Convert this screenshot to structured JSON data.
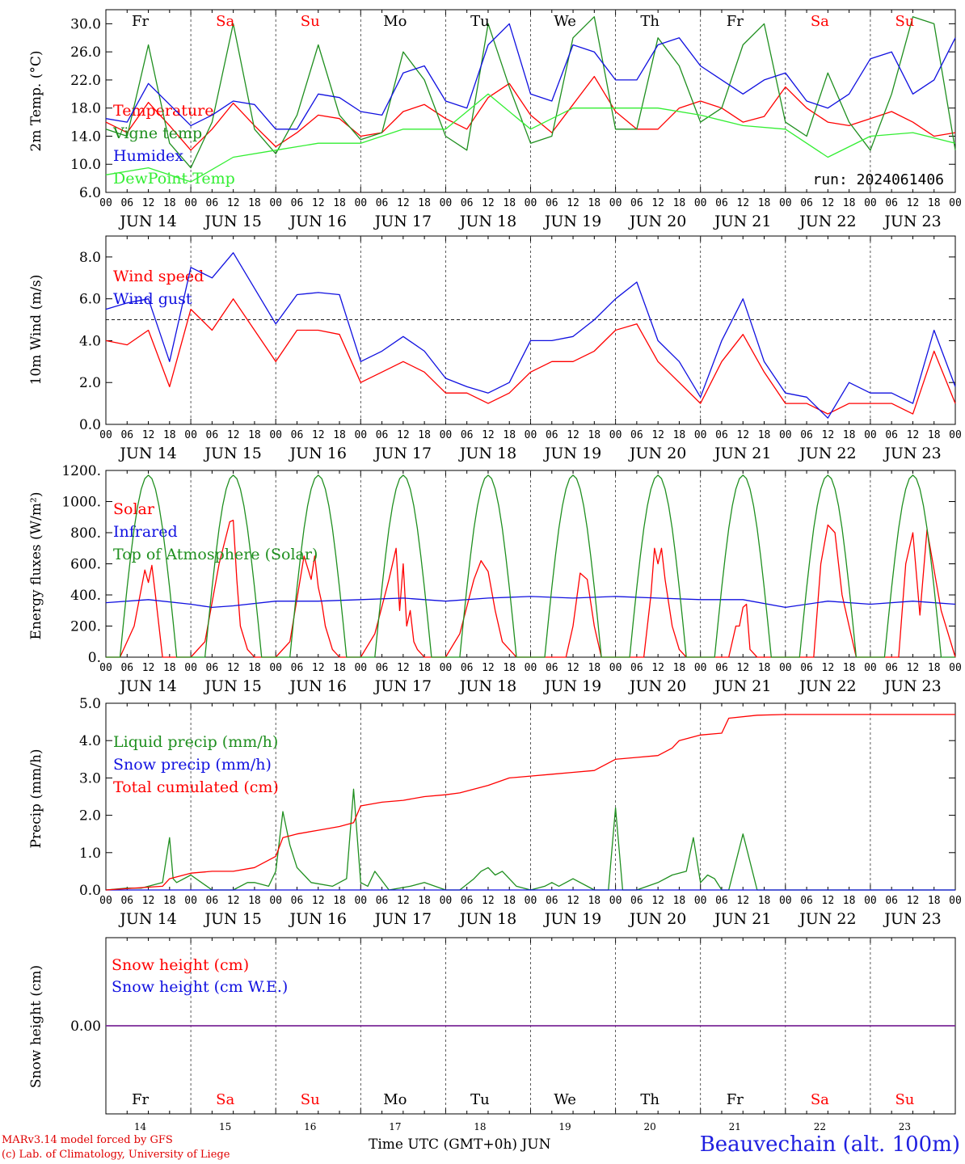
{
  "chart_data": [
    {
      "type": "line",
      "ylabel": "2m Temp. (°C)",
      "yticks": [
        "6.0",
        "10.0",
        "14.0",
        "18.0",
        "22.0",
        "26.0",
        "30.0"
      ],
      "ylim": [
        6,
        32
      ],
      "run_label": "run: 2024061406",
      "series": [
        {
          "name": "Temperature",
          "color": "#ff0000",
          "x": [
            0,
            6,
            12,
            18,
            24,
            30,
            36,
            42,
            48,
            54,
            60,
            66,
            72,
            78,
            84,
            90,
            96,
            102,
            108,
            114,
            120,
            126,
            132,
            138,
            144,
            150,
            156,
            162,
            168,
            174,
            180,
            186,
            192,
            198,
            204,
            210,
            216,
            222,
            228,
            234,
            240
          ],
          "y": [
            16,
            14.5,
            18.8,
            15.5,
            12,
            15,
            18.7,
            15.5,
            12.5,
            14.5,
            17,
            16.5,
            14,
            14.5,
            17.5,
            18.5,
            16.5,
            15,
            19.5,
            21.5,
            17,
            14.5,
            18.5,
            22.5,
            17.5,
            15,
            15,
            18,
            19,
            18,
            16,
            16.8,
            21,
            18,
            16,
            15.5,
            16.5,
            17.5,
            16,
            14,
            14.5
          ]
        },
        {
          "name": "Vigne temp",
          "color": "#1f8f1f",
          "x": [
            0,
            6,
            12,
            18,
            24,
            30,
            36,
            42,
            48,
            54,
            60,
            66,
            72,
            78,
            84,
            90,
            96,
            102,
            108,
            114,
            120,
            126,
            132,
            138,
            144,
            150,
            156,
            162,
            168,
            174,
            180,
            186,
            192,
            198,
            204,
            210,
            216,
            222,
            228,
            234,
            240
          ],
          "y": [
            15,
            14,
            27,
            13,
            9.5,
            16,
            30,
            15,
            11.5,
            17,
            27,
            17,
            13.5,
            14.5,
            26,
            22,
            14,
            12,
            30,
            21,
            13,
            14,
            28,
            31,
            15,
            15,
            28,
            24,
            16,
            18,
            27,
            30,
            16,
            14,
            23,
            16,
            12,
            20,
            31,
            30,
            12
          ]
        },
        {
          "name": "Humidex",
          "color": "#1010e0",
          "x": [
            0,
            6,
            12,
            18,
            24,
            30,
            36,
            42,
            48,
            54,
            60,
            66,
            72,
            78,
            84,
            90,
            96,
            102,
            108,
            114,
            120,
            126,
            132,
            138,
            144,
            150,
            156,
            162,
            168,
            174,
            180,
            186,
            192,
            198,
            204,
            210,
            216,
            222,
            228,
            234,
            240
          ],
          "y": [
            16.5,
            16,
            21.5,
            18.5,
            15.5,
            17,
            19,
            18.5,
            15,
            15,
            20,
            19.5,
            17.5,
            17,
            23,
            24,
            19,
            18,
            27,
            30,
            20,
            19,
            27,
            26,
            22,
            22,
            27,
            28,
            24,
            22,
            20,
            22,
            23,
            19,
            18,
            20,
            25,
            26,
            20,
            22,
            28
          ]
        },
        {
          "name": "DewPoint Temp",
          "color": "#33ee33",
          "x": [
            0,
            12,
            24,
            36,
            48,
            60,
            72,
            84,
            96,
            108,
            120,
            132,
            144,
            156,
            168,
            180,
            192,
            204,
            216,
            228,
            240
          ],
          "y": [
            8.5,
            9.5,
            7.5,
            11,
            12,
            13,
            13,
            15,
            15,
            20,
            15,
            18,
            18,
            18,
            17,
            15.5,
            15,
            11,
            14,
            14.5,
            13
          ]
        }
      ]
    },
    {
      "type": "line",
      "ylabel": "10m Wind (m/s)",
      "yticks": [
        "0.0",
        "2.0",
        "4.0",
        "6.0",
        "8.0"
      ],
      "ylim": [
        0,
        9
      ],
      "reference_line": 5,
      "series": [
        {
          "name": "Wind speed",
          "color": "#ff0000",
          "x": [
            0,
            6,
            12,
            18,
            24,
            30,
            36,
            42,
            48,
            54,
            60,
            66,
            72,
            78,
            84,
            90,
            96,
            102,
            108,
            114,
            120,
            126,
            132,
            138,
            144,
            150,
            156,
            162,
            168,
            174,
            180,
            186,
            192,
            198,
            204,
            210,
            216,
            222,
            228,
            234,
            240
          ],
          "y": [
            4,
            3.8,
            4.5,
            1.8,
            5.5,
            4.5,
            6,
            4.5,
            3,
            4.5,
            4.5,
            4.3,
            2,
            2.5,
            3,
            2.5,
            1.5,
            1.5,
            1,
            1.5,
            2.5,
            3,
            3,
            3.5,
            4.5,
            4.8,
            3,
            2,
            1,
            3,
            4.3,
            2.5,
            1,
            1,
            0.5,
            1,
            1,
            1,
            0.5,
            3.5,
            1
          ]
        },
        {
          "name": "Wind gust",
          "color": "#1010e0",
          "x": [
            0,
            6,
            12,
            18,
            24,
            30,
            36,
            42,
            48,
            54,
            60,
            66,
            72,
            78,
            84,
            90,
            96,
            102,
            108,
            114,
            120,
            126,
            132,
            138,
            144,
            150,
            156,
            162,
            168,
            174,
            180,
            186,
            192,
            198,
            204,
            210,
            216,
            222,
            228,
            234,
            240
          ],
          "y": [
            5.5,
            5.8,
            6,
            3,
            7.5,
            7,
            8.2,
            6.5,
            4.8,
            6.2,
            6.3,
            6.2,
            3,
            3.5,
            4.2,
            3.5,
            2.2,
            1.8,
            1.5,
            2,
            4,
            4,
            4.2,
            5,
            6,
            6.8,
            4,
            3,
            1.3,
            4,
            6,
            3,
            1.5,
            1.3,
            0.3,
            2,
            1.5,
            1.5,
            1,
            4.5,
            1.8
          ]
        }
      ]
    },
    {
      "type": "line",
      "ylabel": "Energy fluxes (W/m²)",
      "yticks": [
        "0.",
        "200.",
        "400.",
        "600.",
        "800.",
        "1000.",
        "1200."
      ],
      "ylim": [
        0,
        1200
      ],
      "series": [
        {
          "name": "Solar",
          "color": "#ff0000",
          "x": [
            0,
            4,
            8,
            11,
            12,
            13,
            14,
            15,
            16,
            18,
            20,
            24,
            28,
            32,
            35,
            36,
            37,
            38,
            40,
            42,
            44,
            48,
            52,
            56,
            58,
            59,
            60,
            61,
            62,
            64,
            66,
            68,
            72,
            76,
            80,
            82,
            83,
            84,
            85,
            86,
            87,
            88,
            90,
            92,
            96,
            100,
            104,
            106,
            108,
            110,
            112,
            116,
            120,
            124,
            128,
            130,
            132,
            134,
            136,
            138,
            140,
            144,
            148,
            152,
            154,
            155,
            156,
            157,
            158,
            160,
            162,
            164,
            168,
            172,
            176,
            178,
            179,
            180,
            181,
            182,
            184,
            186,
            188,
            192,
            196,
            200,
            202,
            204,
            206,
            208,
            210,
            212,
            216,
            220,
            224,
            226,
            228,
            230,
            232,
            236,
            240
          ],
          "y": [
            0,
            0,
            200,
            560,
            480,
            590,
            400,
            200,
            0,
            0,
            0,
            0,
            100,
            600,
            870,
            880,
            500,
            200,
            50,
            0,
            0,
            0,
            100,
            650,
            500,
            650,
            450,
            350,
            200,
            50,
            0,
            0,
            0,
            150,
            500,
            700,
            300,
            600,
            200,
            300,
            100,
            50,
            0,
            0,
            0,
            150,
            500,
            620,
            550,
            300,
            100,
            0,
            0,
            0,
            0,
            0,
            200,
            540,
            500,
            200,
            0,
            0,
            0,
            0,
            400,
            700,
            600,
            700,
            500,
            200,
            50,
            0,
            0,
            0,
            0,
            200,
            200,
            320,
            340,
            50,
            0,
            0,
            0,
            0,
            0,
            0,
            600,
            850,
            800,
            400,
            200,
            0,
            0,
            0,
            0,
            600,
            800,
            270,
            820,
            300,
            0
          ]
        },
        {
          "name": "Infrared",
          "color": "#1010e0",
          "x": [
            0,
            12,
            24,
            30,
            36,
            48,
            60,
            72,
            84,
            96,
            108,
            120,
            132,
            144,
            156,
            168,
            180,
            192,
            204,
            216,
            228,
            240
          ],
          "y": [
            350,
            370,
            340,
            320,
            330,
            360,
            360,
            370,
            380,
            360,
            380,
            390,
            380,
            390,
            380,
            370,
            370,
            320,
            360,
            340,
            360,
            340
          ]
        },
        {
          "name": "Top of Atmosphere (Solar)",
          "color": "#1f8f1f",
          "shape": "daily-sine",
          "peak": 1170
        }
      ]
    },
    {
      "type": "line",
      "ylabel": "Precip (mm/h)",
      "yticks": [
        "0.0",
        "1.0",
        "2.0",
        "3.0",
        "4.0",
        "5.0"
      ],
      "ylim": [
        0,
        5
      ],
      "series": [
        {
          "name": "Liquid precip (mm/h)",
          "color": "#1f8f1f",
          "x": [
            0,
            6,
            10,
            12,
            16,
            18,
            19,
            20,
            24,
            30,
            36,
            40,
            42,
            46,
            48,
            50,
            52,
            54,
            58,
            64,
            68,
            70,
            72,
            74,
            76,
            80,
            86,
            90,
            96,
            100,
            104,
            106,
            108,
            110,
            112,
            116,
            120,
            124,
            126,
            128,
            132,
            138,
            142,
            144,
            146,
            148,
            150,
            156,
            160,
            164,
            166,
            168,
            170,
            172,
            174,
            176,
            180,
            184,
            188,
            192,
            200,
            212,
            224,
            240
          ],
          "y": [
            0,
            0.05,
            0.05,
            0.1,
            0.2,
            1.4,
            0.3,
            0.2,
            0.4,
            0,
            0,
            0.2,
            0.2,
            0.1,
            0.5,
            2.1,
            1.2,
            0.6,
            0.2,
            0.1,
            0.3,
            2.7,
            0.2,
            0.1,
            0.5,
            0,
            0.1,
            0.2,
            0,
            0,
            0.3,
            0.5,
            0.6,
            0.4,
            0.5,
            0.1,
            0,
            0.1,
            0.2,
            0.1,
            0.3,
            0,
            0,
            2.2,
            0,
            0,
            0,
            0.2,
            0.4,
            0.5,
            1.4,
            0.2,
            0.4,
            0.3,
            0,
            0,
            1.5,
            0,
            0,
            0,
            0,
            0,
            0,
            0
          ]
        },
        {
          "name": "Snow precip (mm/h)",
          "color": "#1010e0",
          "x": [
            0,
            240
          ],
          "y": [
            0,
            0
          ]
        },
        {
          "name": "Total cumulated (cm)",
          "color": "#ff0000",
          "x": [
            0,
            16,
            18,
            24,
            30,
            36,
            42,
            48,
            50,
            54,
            60,
            66,
            70,
            72,
            78,
            84,
            90,
            96,
            100,
            108,
            114,
            120,
            126,
            132,
            138,
            144,
            150,
            156,
            160,
            162,
            168,
            174,
            176,
            184,
            192,
            240
          ],
          "y": [
            0,
            0.1,
            0.3,
            0.45,
            0.5,
            0.5,
            0.6,
            0.9,
            1.4,
            1.5,
            1.6,
            1.7,
            1.8,
            2.25,
            2.35,
            2.4,
            2.5,
            2.55,
            2.6,
            2.8,
            3,
            3.05,
            3.1,
            3.15,
            3.2,
            3.5,
            3.55,
            3.6,
            3.8,
            4,
            4.15,
            4.2,
            4.6,
            4.68,
            4.7,
            4.7
          ]
        }
      ]
    },
    {
      "type": "line",
      "ylabel": "Snow height (cm)",
      "yticks": [
        "0.00"
      ],
      "series": [
        {
          "name": "Snow height (cm)",
          "color": "#ff0000",
          "x": [
            0,
            240
          ],
          "y": [
            0,
            0
          ]
        },
        {
          "name": "Snow height (cm W.E.)",
          "color": "#1010e0",
          "x": [
            0,
            240
          ],
          "y": [
            0,
            0
          ]
        }
      ]
    }
  ],
  "x_axis": {
    "hour_ticks": [
      "00",
      "06",
      "12",
      "18"
    ],
    "end_tick": "00",
    "dates": [
      "JUN 14",
      "JUN 15",
      "JUN 16",
      "JUN 17",
      "JUN 18",
      "JUN 19",
      "JUN 20",
      "JUN 21",
      "JUN 22",
      "JUN 23"
    ],
    "weekdays": [
      "Fr",
      "Sa",
      "Su",
      "Mo",
      "Tu",
      "We",
      "Th",
      "Fr",
      "Sa",
      "Su"
    ],
    "weekend_flags": [
      false,
      true,
      true,
      false,
      false,
      false,
      false,
      false,
      true,
      true
    ],
    "day_numbers": [
      "14",
      "15",
      "16",
      "17",
      "18",
      "19",
      "20",
      "21",
      "22",
      "23"
    ]
  },
  "colors": {
    "weekday": "#000000",
    "weekend": "#ff0000",
    "axis": "#000000"
  },
  "footer": {
    "model": "MARv3.14 model forced by GFS",
    "lab": "(c) Lab. of Climatology, University of Liege",
    "time_label": "Time UTC (GMT+0h) JUN",
    "station": "Beauvechain (alt. 100m)"
  }
}
